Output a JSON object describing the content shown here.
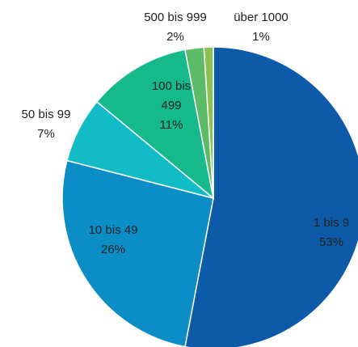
{
  "chart_data": {
    "type": "pie",
    "categories": [
      "1 bis 9",
      "10 bis 49",
      "50 bis 99",
      "100 bis 499",
      "500 bis 999",
      "über 1000"
    ],
    "values": [
      53,
      26,
      7,
      11,
      2,
      1
    ],
    "value_labels": [
      "53%",
      "26%",
      "7%",
      "11%",
      "2%",
      "1%"
    ],
    "colors": [
      "#0d5ba8",
      "#0b8ec6",
      "#12bcc6",
      "#15b98c",
      "#5cbb66",
      "#8dc152"
    ]
  }
}
